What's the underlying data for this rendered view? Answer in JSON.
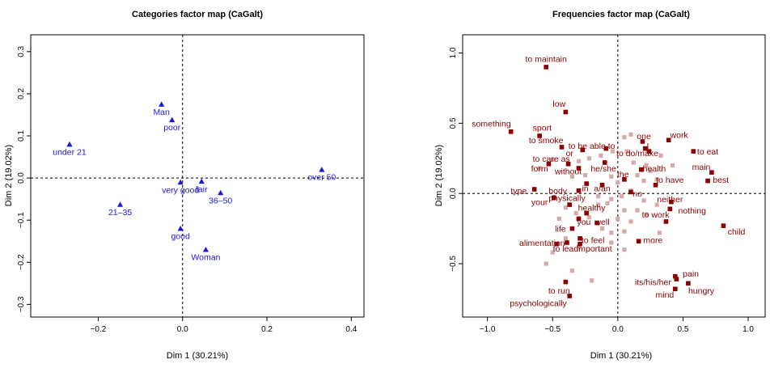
{
  "colors": {
    "categories": "#1a1adb",
    "freq_dark": "#8b0000",
    "freq_light": "#d9a8a8",
    "axis": "#000000"
  },
  "chart_data": [
    {
      "type": "scatter",
      "title": "Categories factor map (CaGalt)",
      "xlabel": "Dim 1 (30.21%)",
      "ylabel": "Dim 2 (19.02%)",
      "xlim": [
        -0.36,
        0.43
      ],
      "ylim": [
        -0.33,
        0.34
      ],
      "xticks": [
        -0.2,
        0.0,
        0.2,
        0.4
      ],
      "xtick_labels": [
        "−0.2",
        "0.0",
        "0.2",
        "0.4"
      ],
      "yticks": [
        -0.3,
        -0.2,
        -0.1,
        0.0,
        0.1,
        0.2,
        0.3
      ],
      "ytick_labels": [
        "−0.3",
        "−0.2",
        "−0.1",
        "0.0",
        "0.1",
        "0.2",
        "0.3"
      ],
      "reference_lines": {
        "x": 0,
        "y": 0
      },
      "marker": "triangle",
      "points": [
        {
          "label": "Man",
          "x": -0.05,
          "y": 0.175
        },
        {
          "label": "poor",
          "x": -0.025,
          "y": 0.138
        },
        {
          "label": "under 21",
          "x": -0.268,
          "y": 0.08
        },
        {
          "label": "over 50",
          "x": 0.33,
          "y": 0.02
        },
        {
          "label": "very good",
          "x": -0.005,
          "y": -0.01
        },
        {
          "label": "fair",
          "x": 0.045,
          "y": -0.008
        },
        {
          "label": "36–50",
          "x": 0.09,
          "y": -0.035
        },
        {
          "label": "21–35",
          "x": -0.148,
          "y": -0.063
        },
        {
          "label": "good",
          "x": -0.005,
          "y": -0.12
        },
        {
          "label": "Woman",
          "x": 0.055,
          "y": -0.17
        }
      ]
    },
    {
      "type": "scatter",
      "title": "Frequencies factor map (CaGalt)",
      "xlabel": "Dim 1 (30.21%)",
      "ylabel": "Dim 2 (19.02%)",
      "xlim": [
        -1.19,
        1.13
      ],
      "ylim": [
        -0.88,
        1.13
      ],
      "xticks": [
        -1.0,
        -0.5,
        0.0,
        0.5,
        1.0
      ],
      "xtick_labels": [
        "−1.0",
        "−0.5",
        "0.0",
        "0.5",
        "1.0"
      ],
      "yticks": [
        -0.5,
        0.0,
        0.5,
        1.0
      ],
      "ytick_labels": [
        "−0.5",
        "0.0",
        "0.5",
        "1.0"
      ],
      "reference_lines": {
        "x": 0,
        "y": 0
      },
      "marker": "square",
      "labeled_points": [
        {
          "label": "to maintain",
          "x": -0.55,
          "y": 0.96,
          "px": -0.55,
          "py": 0.9
        },
        {
          "label": "low",
          "x": -0.45,
          "y": 0.64,
          "px": -0.4,
          "py": 0.58
        },
        {
          "label": "something",
          "x": -0.97,
          "y": 0.5,
          "px": -0.82,
          "py": 0.44
        },
        {
          "label": "sport",
          "x": -0.58,
          "y": 0.47,
          "px": -0.6,
          "py": 0.41
        },
        {
          "label": "to smoke",
          "x": -0.55,
          "y": 0.38,
          "px": -0.43,
          "py": 0.33
        },
        {
          "label": "to be able to",
          "x": -0.2,
          "y": 0.34,
          "px": -0.09,
          "py": 0.32
        },
        {
          "label": "one",
          "x": 0.2,
          "y": 0.41,
          "px": 0.19,
          "py": 0.37
        },
        {
          "label": "work",
          "x": 0.47,
          "y": 0.42,
          "px": 0.39,
          "py": 0.38
        },
        {
          "label": "I",
          "x": 0.23,
          "y": 0.34,
          "px": 0.21,
          "py": 0.32
        },
        {
          "label": "or",
          "x": -0.37,
          "y": 0.29,
          "px": -0.27,
          "py": 0.31
        },
        {
          "label": "to do/make",
          "x": 0.15,
          "y": 0.29,
          "px": 0.24,
          "py": 0.3
        },
        {
          "label": "to eat",
          "x": 0.69,
          "y": 0.3,
          "px": 0.58,
          "py": 0.3
        },
        {
          "label": "to care as",
          "x": -0.51,
          "y": 0.25,
          "px": -0.38,
          "py": 0.21
        },
        {
          "label": "main",
          "x": 0.64,
          "y": 0.19,
          "px": 0.72,
          "py": 0.15
        },
        {
          "label": "form",
          "x": -0.6,
          "y": 0.18,
          "px": -0.53,
          "py": 0.21
        },
        {
          "label": "without",
          "x": -0.38,
          "y": 0.16,
          "px": -0.3,
          "py": 0.18
        },
        {
          "label": "he/she",
          "x": -0.11,
          "y": 0.18,
          "px": -0.1,
          "py": 0.22
        },
        {
          "label": "health",
          "x": 0.28,
          "y": 0.18,
          "px": 0.18,
          "py": 0.17
        },
        {
          "label": "the",
          "x": 0.04,
          "y": 0.14,
          "px": 0.05,
          "py": 0.1
        },
        {
          "label": "best",
          "x": 0.79,
          "y": 0.1,
          "px": 0.69,
          "py": 0.09
        },
        {
          "label": "to have",
          "x": 0.4,
          "y": 0.1,
          "px": 0.29,
          "py": 0.06
        },
        {
          "label": "type",
          "x": -0.76,
          "y": 0.02,
          "px": -0.64,
          "py": 0.03
        },
        {
          "label": "body",
          "x": -0.46,
          "y": 0.02,
          "px": -0.3,
          "py": 0.02
        },
        {
          "label": "a/an",
          "x": -0.12,
          "y": 0.04,
          "px": -0.24,
          "py": 0.07
        },
        {
          "label": "in",
          "x": -0.25,
          "y": 0.04,
          "px": -0.12,
          "py": 0.06
        },
        {
          "label": "no",
          "x": 0.15,
          "y": 0.0,
          "px": 0.1,
          "py": 0.01
        },
        {
          "label": "physically",
          "x": -0.39,
          "y": -0.03,
          "px": -0.49,
          "py": -0.03
        },
        {
          "label": "your",
          "x": -0.6,
          "y": -0.06,
          "px": -0.37,
          "py": -0.08
        },
        {
          "label": "neither",
          "x": 0.4,
          "y": -0.04,
          "px": 0.41,
          "py": -0.06
        },
        {
          "label": "healthy",
          "x": -0.2,
          "y": -0.1,
          "px": -0.24,
          "py": -0.14
        },
        {
          "label": "nothing",
          "x": 0.57,
          "y": -0.12,
          "px": 0.4,
          "py": -0.11
        },
        {
          "label": "to work",
          "x": 0.29,
          "y": -0.15,
          "px": 0.37,
          "py": -0.2
        },
        {
          "label": "child",
          "x": 0.91,
          "y": -0.27,
          "px": 0.81,
          "py": -0.23
        },
        {
          "label": "you",
          "x": -0.26,
          "y": -0.2,
          "px": -0.3,
          "py": -0.18
        },
        {
          "label": "well",
          "x": -0.12,
          "y": -0.2,
          "px": -0.16,
          "py": -0.21
        },
        {
          "label": "life",
          "x": -0.44,
          "y": -0.25,
          "px": -0.35,
          "py": -0.25
        },
        {
          "label": "to feel",
          "x": -0.19,
          "y": -0.33,
          "px": -0.29,
          "py": -0.32
        },
        {
          "label": "more",
          "x": 0.27,
          "y": -0.33,
          "px": 0.16,
          "py": -0.34
        },
        {
          "label": "alimentation",
          "x": -0.58,
          "y": -0.35,
          "px": -0.47,
          "py": -0.36
        },
        {
          "label": "to lead",
          "x": -0.4,
          "y": -0.39,
          "px": -0.39,
          "py": -0.35
        },
        {
          "label": "important",
          "x": -0.18,
          "y": -0.39,
          "px": -0.29,
          "py": -0.36
        },
        {
          "label": "pain",
          "x": 0.56,
          "y": -0.57,
          "px": 0.44,
          "py": -0.59
        },
        {
          "label": "its/his/her",
          "x": 0.27,
          "y": -0.63,
          "px": 0.45,
          "py": -0.61
        },
        {
          "label": "hungry",
          "x": 0.64,
          "y": -0.69,
          "px": 0.54,
          "py": -0.64
        },
        {
          "label": "to run",
          "x": -0.45,
          "y": -0.69,
          "px": -0.4,
          "py": -0.63
        },
        {
          "label": "mind",
          "x": 0.36,
          "y": -0.72,
          "px": 0.44,
          "py": -0.68
        },
        {
          "label": "psychologically",
          "x": -0.61,
          "y": -0.78,
          "px": -0.37,
          "py": -0.73
        }
      ],
      "unlabeled_points": [
        {
          "x": -0.5,
          "y": 0.24
        },
        {
          "x": -0.3,
          "y": 0.23
        },
        {
          "x": -0.22,
          "y": 0.25
        },
        {
          "x": -0.13,
          "y": 0.27
        },
        {
          "x": -0.04,
          "y": 0.3
        },
        {
          "x": 0.05,
          "y": 0.4
        },
        {
          "x": 0.1,
          "y": 0.42
        },
        {
          "x": 0.07,
          "y": 0.3
        },
        {
          "x": 0.33,
          "y": 0.27
        },
        {
          "x": 0.12,
          "y": 0.22
        },
        {
          "x": 0.22,
          "y": 0.2
        },
        {
          "x": 0.42,
          "y": 0.2
        },
        {
          "x": 0.15,
          "y": 0.13
        },
        {
          "x": 0.25,
          "y": 0.16
        },
        {
          "x": 0.2,
          "y": 0.09
        },
        {
          "x": -0.05,
          "y": 0.12
        },
        {
          "x": 0.1,
          "y": 0.02
        },
        {
          "x": 0.0,
          "y": 0.08
        },
        {
          "x": -0.35,
          "y": 0.12
        },
        {
          "x": -0.25,
          "y": 0.13
        },
        {
          "x": 0.03,
          "y": -0.02
        },
        {
          "x": -0.05,
          "y": -0.04
        },
        {
          "x": -0.15,
          "y": -0.02
        },
        {
          "x": -0.4,
          "y": -0.1
        },
        {
          "x": -0.15,
          "y": -0.08
        },
        {
          "x": -0.08,
          "y": -0.07
        },
        {
          "x": 0.2,
          "y": -0.05
        },
        {
          "x": 0.3,
          "y": -0.08
        },
        {
          "x": 0.05,
          "y": -0.12
        },
        {
          "x": 0.15,
          "y": -0.12
        },
        {
          "x": 0.22,
          "y": -0.15
        },
        {
          "x": -0.32,
          "y": -0.14
        },
        {
          "x": -0.22,
          "y": -0.17
        },
        {
          "x": 0.0,
          "y": -0.18
        },
        {
          "x": 0.1,
          "y": -0.2
        },
        {
          "x": -0.12,
          "y": -0.25
        },
        {
          "x": -0.05,
          "y": -0.28
        },
        {
          "x": 0.05,
          "y": -0.27
        },
        {
          "x": 0.32,
          "y": -0.28
        },
        {
          "x": -0.4,
          "y": -0.32
        },
        {
          "x": -0.3,
          "y": -0.38
        },
        {
          "x": -0.05,
          "y": -0.35
        },
        {
          "x": 0.05,
          "y": -0.4
        },
        {
          "x": -0.55,
          "y": -0.5
        },
        {
          "x": -0.5,
          "y": -0.42
        },
        {
          "x": -0.35,
          "y": -0.55
        },
        {
          "x": -0.2,
          "y": -0.62
        },
        {
          "x": -0.45,
          "y": -0.18
        },
        {
          "x": 0.3,
          "y": 0.1
        },
        {
          "x": -0.6,
          "y": 0.18
        }
      ]
    }
  ]
}
